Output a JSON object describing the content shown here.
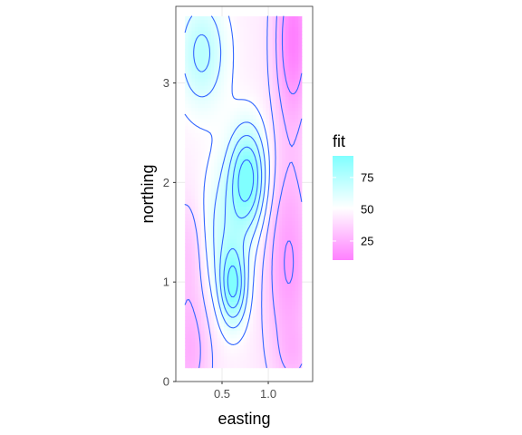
{
  "chart_data": {
    "type": "heatmap",
    "xlabel": "easting",
    "ylabel": "northing",
    "xlim": [
      0.0,
      1.48
    ],
    "ylim": [
      0.0,
      3.77
    ],
    "x_ticks": [
      {
        "value": 0.5,
        "label": "0.5"
      },
      {
        "value": 1.0,
        "label": "1.0"
      }
    ],
    "y_ticks": [
      {
        "value": 0,
        "label": "0"
      },
      {
        "value": 1,
        "label": "1"
      },
      {
        "value": 2,
        "label": "2"
      },
      {
        "value": 3,
        "label": "3"
      }
    ],
    "grid": true,
    "data_extent": {
      "x": [
        0.1,
        1.36
      ],
      "y": [
        0.14,
        3.67
      ]
    },
    "fill_scale": {
      "name": "fit",
      "low_color": "#ff80ff",
      "mid_color": "#ffffff",
      "high_color": "#80ffff",
      "range": [
        10,
        92
      ],
      "midpoint": 50,
      "breaks": [
        25,
        50,
        75
      ]
    },
    "peaks": [
      {
        "x": 0.78,
        "y": 2.06,
        "fit": 92
      },
      {
        "x": 0.62,
        "y": 0.95,
        "fit": 85
      }
    ],
    "troughs": [
      {
        "x": 1.27,
        "y": 3.45,
        "fit": 15
      },
      {
        "x": 0.15,
        "y": 0.3,
        "fit": 25
      }
    ],
    "contour_color": "#3366ff",
    "legend_position": "right"
  }
}
